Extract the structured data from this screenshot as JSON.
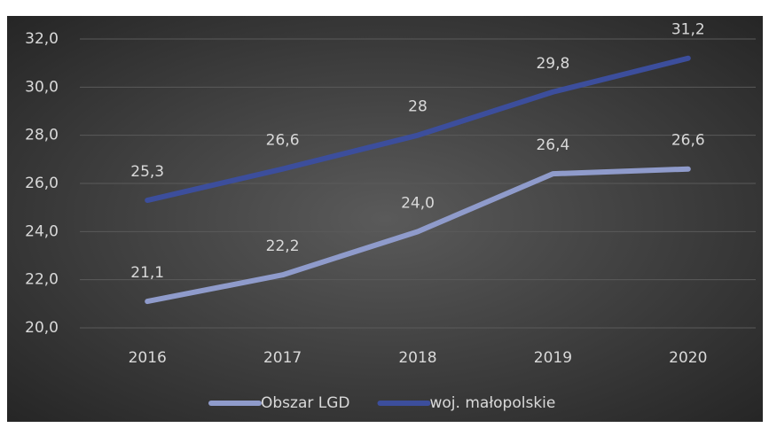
{
  "chart_data": {
    "type": "line",
    "categories": [
      "2016",
      "2017",
      "2018",
      "2019",
      "2020"
    ],
    "series": [
      {
        "name": "Obszar LGD",
        "color": "#8f9bcb",
        "values": [
          21.1,
          22.2,
          24.0,
          26.4,
          26.6
        ],
        "value_labels": [
          "21,1",
          "22,2",
          "24,0",
          "26,4",
          "26,6"
        ]
      },
      {
        "name": "woj. małopolskie",
        "color": "#3c4e9c",
        "values": [
          25.3,
          26.6,
          28,
          29.8,
          31.2
        ],
        "value_labels": [
          "25,3",
          "26,6",
          "28",
          "29,8",
          "31,2"
        ]
      }
    ],
    "ylim": [
      20,
      32
    ],
    "yticks": [
      {
        "value": 20,
        "label": "20,0"
      },
      {
        "value": 22,
        "label": "22,0"
      },
      {
        "value": 24,
        "label": "24,0"
      },
      {
        "value": 26,
        "label": "26,0"
      },
      {
        "value": 28,
        "label": "28,0"
      },
      {
        "value": 30,
        "label": "30,0"
      },
      {
        "value": 32,
        "label": "32,0"
      }
    ],
    "grid": true,
    "legend": "bottom"
  }
}
